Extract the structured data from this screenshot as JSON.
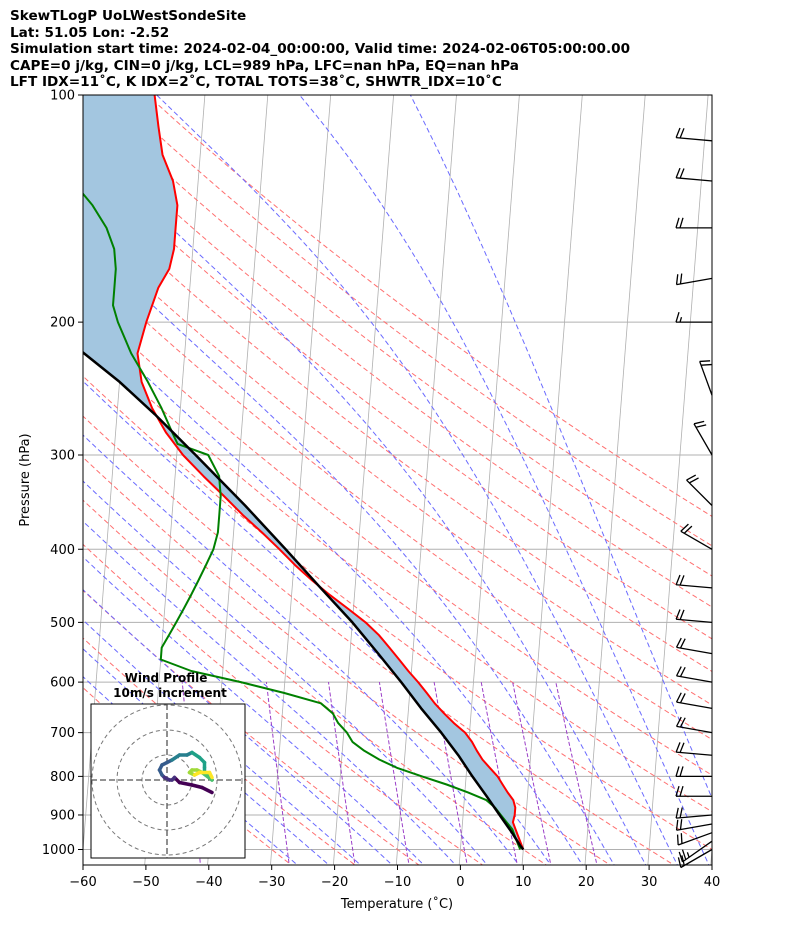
{
  "header": {
    "title": "SkewTLogP UoLWestSondeSite",
    "location": "Lat: 51.05   Lon: -2.52",
    "times": "Simulation start time: 2024-02-04_00:00:00, Valid time: 2024-02-06T05:00:00.00",
    "indices1": "CAPE=0 j/kg, CIN=0 j/kg, LCL=989 hPa, LFC=nan hPa, EQ=nan hPa",
    "indices2": "LFT IDX=11˚C, K IDX=2˚C, TOTAL TOTS=38˚C, SHWTR_IDX=10˚C"
  },
  "chart_data": {
    "type": "line",
    "title": "SkewTLogP UoLWestSondeSite",
    "xlabel": "Temperature (˚C)",
    "ylabel": "Pressure (hPa)",
    "xlim": [
      -60,
      40
    ],
    "plim": [
      1040,
      100
    ],
    "x_ticks": [
      -60,
      -50,
      -40,
      -30,
      -20,
      -10,
      0,
      10,
      20,
      30,
      40
    ],
    "x_tick_labels": [
      "−60",
      "−50",
      "−40",
      "−30",
      "−20",
      "−10",
      "0",
      "10",
      "20",
      "30",
      "40"
    ],
    "p_ticks": [
      100,
      200,
      300,
      400,
      500,
      600,
      700,
      800,
      900,
      1000
    ],
    "p_tick_labels": [
      "100",
      "200",
      "300",
      "400",
      "500",
      "600",
      "700",
      "800",
      "900",
      "1000"
    ],
    "skew_per_decade": 59,
    "colors": {
      "temperature": "#ff0000",
      "dewpoint": "#008000",
      "parcel": "#000000",
      "shade": "#a3c6e0",
      "dry_adiabat": "#ff7070",
      "moist_adiabat": "#6a6aff",
      "mixing_ratio": "#9b3fc8",
      "isotherm": "#b0b0b0",
      "grid": "#b0b0b0"
    },
    "series": [
      {
        "name": "temperature",
        "points": [
          [
            10,
            1000
          ],
          [
            9.5,
            980
          ],
          [
            9,
            960
          ],
          [
            8.5,
            940
          ],
          [
            8,
            920
          ],
          [
            8.2,
            900
          ],
          [
            8.2,
            880
          ],
          [
            7.8,
            860
          ],
          [
            6.8,
            840
          ],
          [
            5.9,
            820
          ],
          [
            5,
            800
          ],
          [
            3.7,
            780
          ],
          [
            2.4,
            760
          ],
          [
            1.4,
            740
          ],
          [
            0.5,
            720
          ],
          [
            -0.7,
            700
          ],
          [
            -2.6,
            680
          ],
          [
            -4.3,
            660
          ],
          [
            -5.9,
            640
          ],
          [
            -7.3,
            620
          ],
          [
            -8.8,
            600
          ],
          [
            -10.5,
            580
          ],
          [
            -12.1,
            560
          ],
          [
            -13.8,
            540
          ],
          [
            -15.6,
            520
          ],
          [
            -17.9,
            500
          ],
          [
            -20.8,
            480
          ],
          [
            -23.9,
            460
          ],
          [
            -26.9,
            440
          ],
          [
            -29.8,
            420
          ],
          [
            -32.5,
            400
          ],
          [
            -35.5,
            380
          ],
          [
            -38.8,
            360
          ],
          [
            -42,
            340
          ],
          [
            -45.5,
            320
          ],
          [
            -49,
            300
          ],
          [
            -52,
            280
          ],
          [
            -54.5,
            260
          ],
          [
            -56.5,
            240
          ],
          [
            -57.5,
            220
          ],
          [
            -56.5,
            200
          ],
          [
            -55,
            180
          ],
          [
            -53.5,
            170
          ],
          [
            -53,
            160
          ],
          [
            -53,
            150
          ],
          [
            -53,
            140
          ],
          [
            -54,
            130
          ],
          [
            -56,
            120
          ],
          [
            -57,
            110
          ],
          [
            -58,
            100
          ]
        ]
      },
      {
        "name": "dewpoint",
        "points": [
          [
            9.5,
            1000
          ],
          [
            9,
            980
          ],
          [
            8.5,
            960
          ],
          [
            8,
            940
          ],
          [
            7,
            920
          ],
          [
            6,
            900
          ],
          [
            5,
            880
          ],
          [
            3.5,
            860
          ],
          [
            0.5,
            840
          ],
          [
            -3,
            820
          ],
          [
            -7,
            800
          ],
          [
            -11,
            780
          ],
          [
            -14,
            760
          ],
          [
            -16.5,
            740
          ],
          [
            -18.5,
            720
          ],
          [
            -19.5,
            700
          ],
          [
            -21,
            680
          ],
          [
            -22,
            660
          ],
          [
            -24,
            640
          ],
          [
            -30,
            620
          ],
          [
            -37,
            600
          ],
          [
            -45,
            580
          ],
          [
            -50,
            560
          ],
          [
            -50,
            540
          ],
          [
            -49,
            520
          ],
          [
            -48,
            500
          ],
          [
            -47,
            480
          ],
          [
            -46,
            460
          ],
          [
            -45,
            440
          ],
          [
            -44,
            420
          ],
          [
            -43,
            400
          ],
          [
            -42.5,
            380
          ],
          [
            -42.5,
            360
          ],
          [
            -42.5,
            340
          ],
          [
            -43,
            320
          ],
          [
            -45,
            300
          ],
          [
            -50,
            290
          ],
          [
            -51,
            280
          ],
          [
            -53,
            260
          ],
          [
            -55.5,
            240
          ],
          [
            -58.5,
            220
          ],
          [
            -61,
            200
          ],
          [
            -62,
            190
          ],
          [
            -62,
            180
          ],
          [
            -62,
            170
          ],
          [
            -62.5,
            160
          ],
          [
            -64,
            150
          ],
          [
            -66.5,
            140
          ],
          [
            -70,
            130
          ],
          [
            -73,
            120
          ],
          [
            -77,
            110
          ],
          [
            -81,
            100
          ]
        ]
      },
      {
        "name": "parcel",
        "points": [
          [
            10,
            1000
          ],
          [
            9.5,
            989
          ],
          [
            8,
            950
          ],
          [
            5.8,
            900
          ],
          [
            3.5,
            850
          ],
          [
            1,
            800
          ],
          [
            -1.5,
            750
          ],
          [
            -4.5,
            700
          ],
          [
            -8,
            650
          ],
          [
            -11.5,
            600
          ],
          [
            -15.5,
            550
          ],
          [
            -20,
            500
          ],
          [
            -25.5,
            450
          ],
          [
            -31.5,
            400
          ],
          [
            -38.5,
            350
          ],
          [
            -47,
            300
          ],
          [
            -54,
            265
          ],
          [
            -60,
            240
          ],
          [
            -66,
            220
          ],
          [
            -72,
            200
          ],
          [
            -79,
            180
          ],
          [
            -86,
            160
          ],
          [
            -94,
            140
          ],
          [
            -103,
            120
          ],
          [
            -113,
            100
          ]
        ]
      }
    ],
    "wind_barbs": [
      {
        "p": 1000,
        "speed": 20,
        "dir": 240
      },
      {
        "p": 975,
        "speed": 25,
        "dir": 235
      },
      {
        "p": 950,
        "speed": 20,
        "dir": 250
      },
      {
        "p": 925,
        "speed": 20,
        "dir": 260
      },
      {
        "p": 900,
        "speed": 20,
        "dir": 265
      },
      {
        "p": 850,
        "speed": 20,
        "dir": 270
      },
      {
        "p": 800,
        "speed": 20,
        "dir": 270
      },
      {
        "p": 750,
        "speed": 20,
        "dir": 275
      },
      {
        "p": 700,
        "speed": 20,
        "dir": 280
      },
      {
        "p": 650,
        "speed": 20,
        "dir": 280
      },
      {
        "p": 600,
        "speed": 20,
        "dir": 280
      },
      {
        "p": 550,
        "speed": 20,
        "dir": 280
      },
      {
        "p": 500,
        "speed": 20,
        "dir": 275
      },
      {
        "p": 450,
        "speed": 20,
        "dir": 275
      },
      {
        "p": 400,
        "speed": 20,
        "dir": 300
      },
      {
        "p": 350,
        "speed": 20,
        "dir": 315
      },
      {
        "p": 300,
        "speed": 20,
        "dir": 330
      },
      {
        "p": 250,
        "speed": 20,
        "dir": 340
      },
      {
        "p": 200,
        "speed": 15,
        "dir": 270
      },
      {
        "p": 175,
        "speed": 20,
        "dir": 260
      },
      {
        "p": 150,
        "speed": 20,
        "dir": 270
      },
      {
        "p": 130,
        "speed": 20,
        "dir": 275
      },
      {
        "p": 115,
        "speed": 20,
        "dir": 275
      }
    ],
    "hodograph": {
      "title": "Wind Profile",
      "subtitle": "10m/s increment",
      "rings_ms": [
        10,
        20,
        30
      ],
      "points": [
        [
          18,
          -5
        ],
        [
          14,
          -3
        ],
        [
          10,
          -2
        ],
        [
          5,
          -1
        ],
        [
          3,
          1
        ],
        [
          2,
          0
        ],
        [
          1,
          0
        ],
        [
          -1,
          1
        ],
        [
          -2,
          2
        ],
        [
          -3,
          4
        ],
        [
          -2,
          6
        ],
        [
          0,
          7
        ],
        [
          2,
          8
        ],
        [
          5,
          10
        ],
        [
          8,
          10
        ],
        [
          10,
          11
        ],
        [
          13,
          9
        ],
        [
          15,
          7
        ],
        [
          15,
          5
        ],
        [
          15,
          3
        ],
        [
          16,
          2
        ],
        [
          17,
          1
        ],
        [
          18,
          0
        ],
        [
          14,
          3
        ],
        [
          12,
          4
        ],
        [
          10,
          4
        ],
        [
          9,
          3
        ],
        [
          11,
          2
        ],
        [
          13,
          3
        ],
        [
          17,
          3
        ],
        [
          18,
          1
        ]
      ]
    }
  }
}
